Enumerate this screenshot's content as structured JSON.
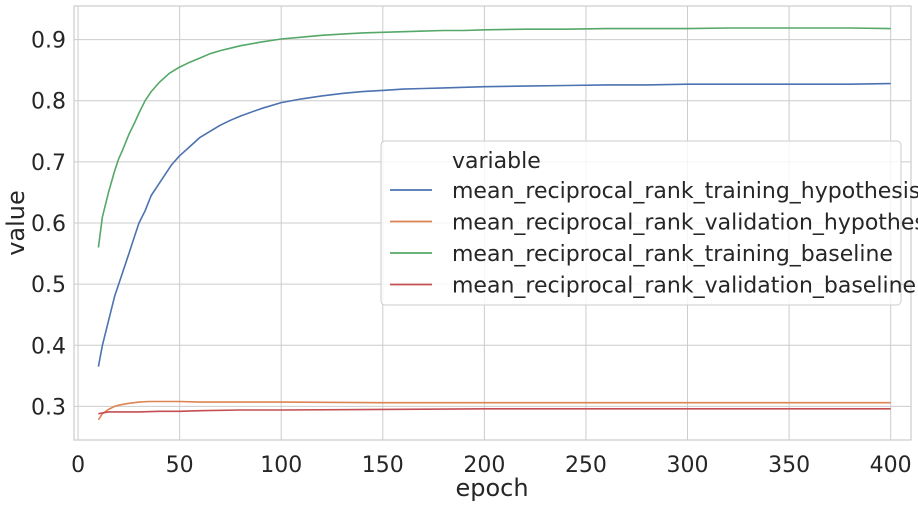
{
  "chart_data": {
    "type": "line",
    "xlabel": "epoch",
    "ylabel": "value",
    "xlim": [
      -2,
      410
    ],
    "ylim": [
      0.245,
      0.955
    ],
    "xticks": [
      0,
      50,
      100,
      150,
      200,
      250,
      300,
      350,
      400
    ],
    "yticks": [
      0.3,
      0.4,
      0.5,
      0.6,
      0.7,
      0.8,
      0.9
    ],
    "grid": true,
    "legend": {
      "title": "variable",
      "placement": "center-right"
    },
    "series": [
      {
        "name": "mean_reciprocal_rank_training_hypothesis",
        "color": "#4c72b0",
        "x": [
          10,
          12,
          15,
          18,
          20,
          22,
          25,
          28,
          30,
          33,
          36,
          40,
          43,
          46,
          50,
          55,
          60,
          65,
          70,
          75,
          80,
          90,
          100,
          110,
          120,
          130,
          140,
          150,
          160,
          170,
          180,
          190,
          200,
          220,
          240,
          260,
          280,
          300,
          320,
          340,
          360,
          380,
          400
        ],
        "y": [
          0.365,
          0.4,
          0.44,
          0.48,
          0.5,
          0.52,
          0.55,
          0.58,
          0.6,
          0.62,
          0.645,
          0.665,
          0.68,
          0.695,
          0.71,
          0.725,
          0.74,
          0.75,
          0.76,
          0.768,
          0.775,
          0.787,
          0.797,
          0.803,
          0.808,
          0.812,
          0.815,
          0.817,
          0.819,
          0.82,
          0.821,
          0.822,
          0.823,
          0.824,
          0.825,
          0.826,
          0.826,
          0.827,
          0.827,
          0.827,
          0.827,
          0.827,
          0.828
        ]
      },
      {
        "name": "mean_reciprocal_rank_validation_hypothesis",
        "color": "#dd8452",
        "x": [
          10,
          12,
          15,
          18,
          20,
          25,
          30,
          35,
          40,
          50,
          60,
          70,
          80,
          100,
          150,
          200,
          250,
          300,
          350,
          400
        ],
        "y": [
          0.278,
          0.288,
          0.295,
          0.3,
          0.302,
          0.305,
          0.307,
          0.308,
          0.308,
          0.308,
          0.307,
          0.307,
          0.307,
          0.307,
          0.306,
          0.306,
          0.306,
          0.306,
          0.306,
          0.306
        ]
      },
      {
        "name": "mean_reciprocal_rank_training_baseline",
        "color": "#55a868",
        "x": [
          10,
          12,
          15,
          18,
          20,
          22,
          25,
          28,
          30,
          33,
          36,
          40,
          45,
          50,
          55,
          60,
          65,
          70,
          75,
          80,
          90,
          100,
          110,
          120,
          130,
          140,
          150,
          160,
          170,
          180,
          190,
          200,
          220,
          240,
          260,
          280,
          300,
          320,
          340,
          360,
          380,
          400
        ],
        "y": [
          0.56,
          0.61,
          0.65,
          0.685,
          0.705,
          0.72,
          0.745,
          0.765,
          0.78,
          0.8,
          0.815,
          0.83,
          0.845,
          0.855,
          0.863,
          0.87,
          0.877,
          0.882,
          0.886,
          0.89,
          0.896,
          0.901,
          0.904,
          0.907,
          0.909,
          0.911,
          0.912,
          0.913,
          0.914,
          0.915,
          0.915,
          0.916,
          0.917,
          0.917,
          0.918,
          0.918,
          0.918,
          0.919,
          0.919,
          0.919,
          0.919,
          0.918
        ]
      },
      {
        "name": "mean_reciprocal_rank_validation_baseline",
        "color": "#c44e52",
        "x": [
          10,
          15,
          20,
          30,
          40,
          50,
          60,
          80,
          100,
          150,
          200,
          250,
          300,
          350,
          400
        ],
        "y": [
          0.288,
          0.291,
          0.291,
          0.291,
          0.292,
          0.292,
          0.293,
          0.294,
          0.294,
          0.295,
          0.296,
          0.296,
          0.296,
          0.296,
          0.296
        ]
      }
    ]
  }
}
